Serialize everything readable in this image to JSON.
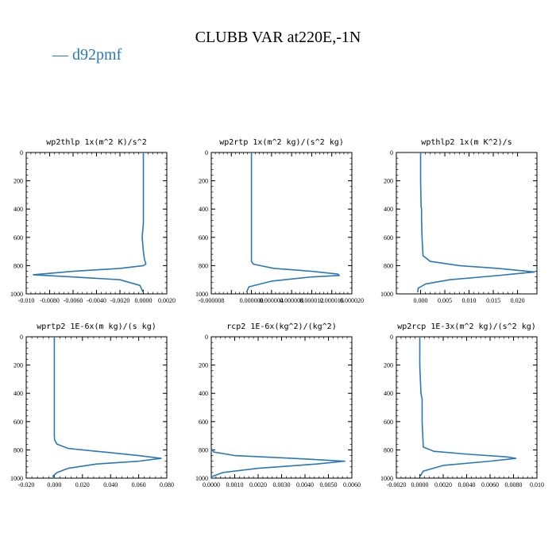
{
  "title": "CLUBB VAR at220E,-1N",
  "legend": {
    "label": "— d92pmf",
    "color": "#2a78b5"
  },
  "line_color": "#2a78b5",
  "chart_data": [
    {
      "type": "line",
      "title": "wp2thlp  1x(m^2 K)/s^2",
      "xlim": [
        -0.01,
        0.002
      ],
      "xticks": [
        -0.01,
        -0.008,
        -0.006,
        -0.004,
        -0.002,
        0.0,
        0.002
      ],
      "xtick_labels": [
        "-0.010",
        "-0.0080",
        "-0.0060",
        "-0.0040",
        "-0.0020",
        "0.0000",
        "0.0020"
      ],
      "ylim": [
        1000,
        0
      ],
      "yticks": [
        0,
        200,
        400,
        600,
        800,
        1000
      ],
      "ytick_labels": [
        "0",
        "200",
        "400",
        "600",
        "800",
        "1000"
      ],
      "series": [
        {
          "x": [
            0.0,
            0.0,
            0.0,
            0.0,
            0.0,
            -0.0001,
            0.0,
            0.0001,
            0.0002,
            0.0002,
            0.0,
            -0.002,
            -0.006,
            -0.0094,
            -0.006,
            -0.002,
            -0.0003,
            0.0
          ],
          "y": [
            0,
            200,
            400,
            460,
            500,
            600,
            700,
            760,
            780,
            790,
            800,
            820,
            840,
            865,
            880,
            900,
            940,
            990
          ]
        }
      ]
    },
    {
      "type": "line",
      "title": "wp2rtp  1x(m^2 kg)/(s^2 kg)",
      "xlim": [
        -8e-06,
        2e-05
      ],
      "xticks": [
        -8e-06,
        -4e-06,
        0.0,
        4e-06,
        8e-06,
        1.2e-05,
        1.6e-05,
        2e-05
      ],
      "xtick_labels": [
        "-0.000008",
        "0.000000",
        "0.000004",
        "0.000008",
        "0.000012",
        "0.000016",
        "0.000020"
      ],
      "xtick_values": [
        -8e-06,
        0.0,
        4e-06,
        8e-06,
        1.2e-05,
        1.6e-05,
        2e-05
      ],
      "ylim": [
        1000,
        0
      ],
      "yticks": [
        0,
        200,
        400,
        600,
        800,
        1000
      ],
      "ytick_labels": [
        "0",
        "200",
        "400",
        "600",
        "800",
        "1000"
      ],
      "series": [
        {
          "x": [
            0.0,
            0.0,
            0.0,
            0.0,
            0.0,
            0.0,
            0.0,
            4e-07,
            4.5e-06,
            1.2e-05,
            1.72e-05,
            1.75e-05,
            1.2e-05,
            4e-06,
            -5e-07,
            -1e-06
          ],
          "y": [
            0,
            200,
            400,
            500,
            600,
            700,
            770,
            790,
            820,
            840,
            860,
            870,
            880,
            910,
            950,
            990
          ]
        }
      ]
    },
    {
      "type": "line",
      "title": "wpthlp2  1x(m K^2)/s",
      "xlim": [
        -0.005,
        0.024
      ],
      "xticks": [
        0.0,
        0.005,
        0.01,
        0.015,
        0.02
      ],
      "xtick_labels": [
        "0.000",
        "0.005",
        "0.010",
        "0.015",
        "0.020"
      ],
      "ylim": [
        1000,
        0
      ],
      "yticks": [
        0,
        200,
        400,
        600,
        800,
        1000
      ],
      "ytick_labels": [
        "0",
        "200",
        "400",
        "600",
        "800",
        "1000"
      ],
      "series": [
        {
          "x": [
            0.0,
            0.0,
            0.0001,
            0.0002,
            0.0002,
            0.0003,
            0.0005,
            0.002,
            0.008,
            0.016,
            0.0235,
            0.016,
            0.006,
            0.001,
            -0.0005,
            -0.0006
          ],
          "y": [
            0,
            200,
            380,
            400,
            460,
            600,
            730,
            770,
            800,
            820,
            845,
            870,
            900,
            930,
            960,
            990
          ]
        }
      ]
    },
    {
      "type": "line",
      "title": "wprtp2  1E-6x(m kg)/(s kg)",
      "xlim": [
        -0.02,
        0.08
      ],
      "xticks": [
        -0.02,
        0.0,
        0.02,
        0.04,
        0.06,
        0.08
      ],
      "xtick_labels": [
        "-0.020",
        "0.000",
        "0.020",
        "0.040",
        "0.060",
        "0.080"
      ],
      "ylim": [
        1000,
        0
      ],
      "yticks": [
        0,
        200,
        400,
        600,
        800,
        1000
      ],
      "ytick_labels": [
        "0",
        "200",
        "400",
        "600",
        "800",
        "1000"
      ],
      "series": [
        {
          "x": [
            0.0,
            0.0,
            0.0,
            0.0,
            0.0,
            0.0002,
            0.002,
            0.01,
            0.03,
            0.06,
            0.076,
            0.06,
            0.03,
            0.01,
            0.002,
            -0.001,
            0.0
          ],
          "y": [
            0,
            200,
            400,
            600,
            700,
            730,
            760,
            790,
            810,
            840,
            860,
            880,
            900,
            930,
            960,
            985,
            1000
          ]
        }
      ]
    },
    {
      "type": "line",
      "title": "rcp2  1E-6x(kg^2)/(kg^2)",
      "xlim": [
        0.0,
        0.006
      ],
      "xticks": [
        0.0,
        0.001,
        0.002,
        0.003,
        0.004,
        0.005,
        0.006
      ],
      "xtick_labels": [
        "0.0000",
        "0.0010",
        "0.0020",
        "0.0030",
        "0.0040",
        "0.0050",
        "0.0060"
      ],
      "ylim": [
        1000,
        0
      ],
      "yticks": [
        0,
        200,
        400,
        600,
        800,
        1000
      ],
      "ytick_labels": [
        "0",
        "200",
        "400",
        "600",
        "800",
        "1000"
      ],
      "series": [
        {
          "x": [
            0.0,
            0.0001,
            0.001,
            0.0035,
            0.0057,
            0.0045,
            0.002,
            0.0005,
            0.0
          ],
          "y": [
            790,
            815,
            840,
            860,
            880,
            900,
            930,
            960,
            990
          ]
        }
      ]
    },
    {
      "type": "line",
      "title": "wp2rcp  1E-3x(m^2 kg)/(s^2 kg)",
      "xlim": [
        -0.002,
        0.01
      ],
      "xticks": [
        -0.002,
        0.0,
        0.002,
        0.004,
        0.006,
        0.008,
        0.01
      ],
      "xtick_labels": [
        "-0.0020",
        "0.0000",
        "0.0020",
        "0.0040",
        "0.0060",
        "0.0080",
        "0.010"
      ],
      "ylim": [
        1000,
        0
      ],
      "yticks": [
        0,
        200,
        400,
        600,
        800,
        1000
      ],
      "ytick_labels": [
        "0",
        "200",
        "400",
        "600",
        "800",
        "1000"
      ],
      "series": [
        {
          "x": [
            0.0,
            0.0,
            0.0001,
            0.0002,
            0.0002,
            0.0002,
            0.0003,
            0.0012,
            0.004,
            0.0075,
            0.0082,
            0.006,
            0.002,
            0.0003,
            0.0
          ],
          "y": [
            0,
            200,
            400,
            440,
            460,
            600,
            780,
            810,
            830,
            850,
            860,
            880,
            910,
            950,
            990
          ]
        }
      ]
    }
  ]
}
